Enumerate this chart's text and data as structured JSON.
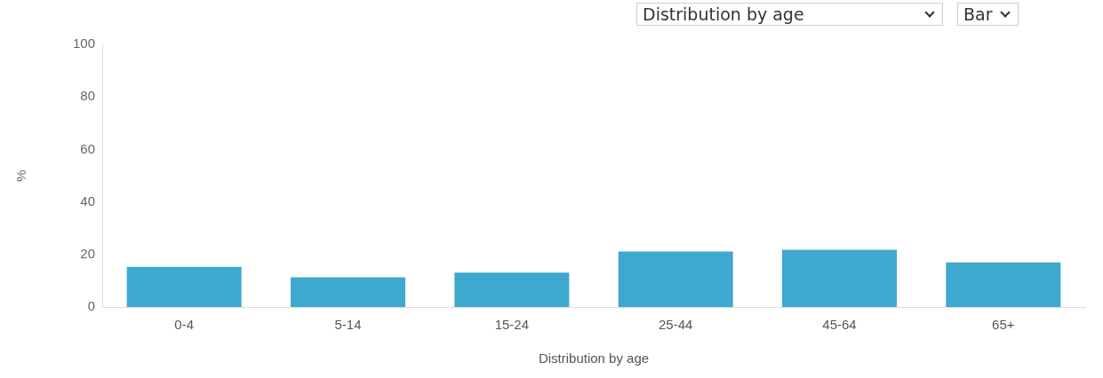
{
  "chart_data": {
    "type": "bar",
    "xlabel": "Distribution by age",
    "ylabel": "%",
    "categories": [
      "0-4",
      "5-14",
      "15-24",
      "25-44",
      "45-64",
      "65+"
    ],
    "values": [
      15.3,
      11.3,
      13.1,
      21.1,
      21.8,
      17.0
    ],
    "color": "#3ea8cf",
    "ylim": [
      0,
      100
    ],
    "yticks": [
      0,
      20,
      40,
      60,
      80,
      100
    ],
    "grid": false,
    "legend": false,
    "annotations": [
      "Distribution by age",
      "Bar"
    ]
  }
}
